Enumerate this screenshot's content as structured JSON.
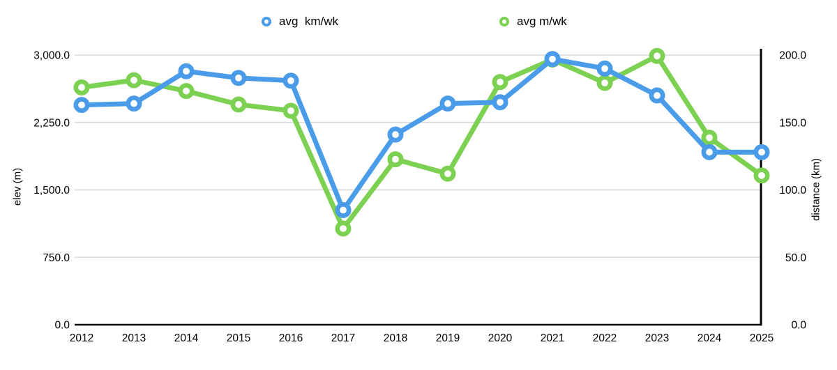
{
  "legend": {
    "items": [
      {
        "label": "avg  km/wk",
        "color": "#4A9CE8"
      },
      {
        "label": "avg m/wk",
        "color": "#7DD152"
      }
    ]
  },
  "chart_data": {
    "type": "line",
    "x": [
      2012,
      2013,
      2014,
      2015,
      2016,
      2017,
      2018,
      2019,
      2020,
      2021,
      2022,
      2023,
      2024,
      2025
    ],
    "x_labels": [
      "2012",
      "2013",
      "2014",
      "2015",
      "2016",
      "2017",
      "2018",
      "2019",
      "2020",
      "2021",
      "2022",
      "2023",
      "2024",
      "2025"
    ],
    "series": [
      {
        "name": "avg  km/wk",
        "axis": "right",
        "color": "#4A9CE8",
        "marker": "open-circle",
        "values": [
          163,
          164,
          188,
          183,
          181,
          85,
          141,
          164,
          165,
          197,
          190,
          170,
          128,
          128
        ]
      },
      {
        "name": "avg m/wk",
        "axis": "left",
        "color": "#7DD152",
        "marker": "open-circle",
        "values": [
          2640,
          2720,
          2600,
          2450,
          2380,
          1070,
          1840,
          1680,
          2700,
          2950,
          2690,
          2990,
          2080,
          1660
        ]
      }
    ],
    "left_axis": {
      "title": "elev (m)",
      "min": 0,
      "max": 3000,
      "tick_values": [
        0,
        750,
        1500,
        2250,
        3000
      ],
      "tick_labels": [
        "0.0",
        "750.0",
        "1,500.0",
        "2,250.0",
        "3,000.0"
      ]
    },
    "right_axis": {
      "title": "distance (km)",
      "min": 0,
      "max": 200,
      "tick_values": [
        0,
        50,
        100,
        150,
        200
      ],
      "tick_labels": [
        "0.0",
        "50.0",
        "100.0",
        "150.0",
        "200.0"
      ]
    },
    "grid": "horizontal",
    "legend_position": "top",
    "colors": {
      "grid": "#d8d8d8",
      "axis": "#000000",
      "text": "#000000",
      "background": "#ffffff"
    }
  }
}
